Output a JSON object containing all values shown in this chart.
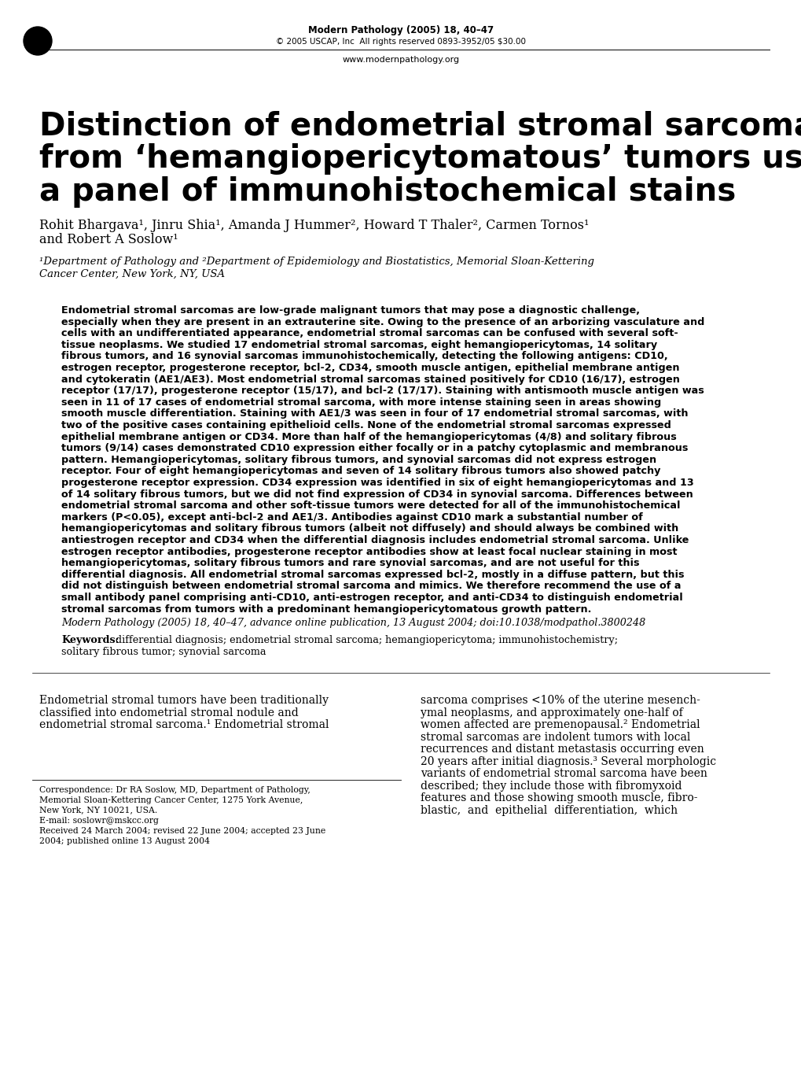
{
  "bg_color": "#ffffff",
  "header_journal": "Modern Pathology (2005) 18, 40–47",
  "header_copyright": "© 2005 USCAP, Inc  All rights reserved 0893-3952/05 $30.00",
  "header_url": "www.modernpathology.org",
  "title_line1": "Distinction of endometrial stromal sarcomas",
  "title_line2": "from ‘hemangiopericytomatous’ tumors using",
  "title_line3": "a panel of immunohistochemical stains",
  "authors": "Rohit Bhargava¹, Jinru Shia¹, Amanda J Hummer², Howard T Thaler², Carmen Tornos¹",
  "authors2": "and Robert A Soslow¹",
  "affil1": "¹Department of Pathology and ²Department of Epidemiology and Biostatistics, Memorial Sloan-Kettering",
  "affil2": "Cancer Center, New York, NY, USA",
  "abstract_lines": [
    "Endometrial stromal sarcomas are low-grade malignant tumors that may pose a diagnostic challenge,",
    "especially when they are present in an extrauterine site. Owing to the presence of an arborizing vasculature and",
    "cells with an undifferentiated appearance, endometrial stromal sarcomas can be confused with several soft-",
    "tissue neoplasms. We studied 17 endometrial stromal sarcomas, eight hemangiopericytomas, 14 solitary",
    "fibrous tumors, and 16 synovial sarcomas immunohistochemically, detecting the following antigens: CD10,",
    "estrogen receptor, progesterone receptor, bcl-2, CD34, smooth muscle antigen, epithelial membrane antigen",
    "and cytokeratin (AE1/AE3). Most endometrial stromal sarcomas stained positively for CD10 (16/17), estrogen",
    "receptor (17/17), progesterone receptor (15/17), and bcl-2 (17/17). Staining with antismooth muscle antigen was",
    "seen in 11 of 17 cases of endometrial stromal sarcoma, with more intense staining seen in areas showing",
    "smooth muscle differentiation. Staining with AE1/3 was seen in four of 17 endometrial stromal sarcomas, with",
    "two of the positive cases containing epithelioid cells. None of the endometrial stromal sarcomas expressed",
    "epithelial membrane antigen or CD34. More than half of the hemangiopericytomas (4/8) and solitary fibrous",
    "tumors (9/14) cases demonstrated CD10 expression either focally or in a patchy cytoplasmic and membranous",
    "pattern. Hemangiopericytomas, solitary fibrous tumors, and synovial sarcomas did not express estrogen",
    "receptor. Four of eight hemangiopericytomas and seven of 14 solitary fibrous tumors also showed patchy",
    "progesterone receptor expression. CD34 expression was identified in six of eight hemangiopericytomas and 13",
    "of 14 solitary fibrous tumors, but we did not find expression of CD34 in synovial sarcoma. Differences between",
    "endometrial stromal sarcoma and other soft-tissue tumors were detected for all of the immunohistochemical",
    "markers (P<0.05), except anti-bcl-2 and AE1/3. Antibodies against CD10 mark a substantial number of",
    "hemangiopericytomas and solitary fibrous tumors (albeit not diffusely) and should always be combined with",
    "antiestrogen receptor and CD34 when the differential diagnosis includes endometrial stromal sarcoma. Unlike",
    "estrogen receptor antibodies, progesterone receptor antibodies show at least focal nuclear staining in most",
    "hemangiopericytomas, solitary fibrous tumors and rare synovial sarcomas, and are not useful for this",
    "differential diagnosis. All endometrial stromal sarcomas expressed bcl-2, mostly in a diffuse pattern, but this",
    "did not distinguish between endometrial stromal sarcoma and mimics. We therefore recommend the use of a",
    "small antibody panel comprising anti-CD10, anti-estrogen receptor, and anti-CD34 to distinguish endometrial",
    "stromal sarcomas from tumors with a predominant hemangiopericytomatous growth pattern."
  ],
  "citation": "Modern Pathology (2005) 18, 40–47, advance online publication, 13 August 2004; doi:10.1038/modpathol.3800248",
  "citation_bold_part": "18,",
  "keywords_label": "Keywords:",
  "keywords_line1": " differential diagnosis; endometrial stromal sarcoma; hemangiopericytoma; immunohistochemistry;",
  "keywords_line2": "solitary fibrous tumor; synovial sarcoma",
  "body_col1_lines": [
    "Endometrial stromal tumors have been traditionally",
    "classified into endometrial stromal nodule and",
    "endometrial stromal sarcoma.¹ Endometrial stromal"
  ],
  "body_col2_lines": [
    "sarcoma comprises <10% of the uterine mesench-",
    "ymal neoplasms, and approximately one-half of",
    "women affected are premenopausal.² Endometrial",
    "stromal sarcomas are indolent tumors with local",
    "recurrences and distant metastasis occurring even",
    "20 years after initial diagnosis.³ Several morphologic",
    "variants of endometrial stromal sarcoma have been",
    "described; they include those with fibromyxoid",
    "features and those showing smooth muscle, fibro-",
    "blastic,  and  epithelial  differentiation,  which"
  ],
  "footnote_lines": [
    "Correspondence: Dr RA Soslow, MD, Department of Pathology,",
    "Memorial Sloan-Kettering Cancer Center, 1275 York Avenue,",
    "New York, NY 10021, USA.",
    "E-mail: soslowr@mskcc.org",
    "Received 24 March 2004; revised 22 June 2004; accepted 23 June",
    "2004; published online 13 August 2004"
  ]
}
